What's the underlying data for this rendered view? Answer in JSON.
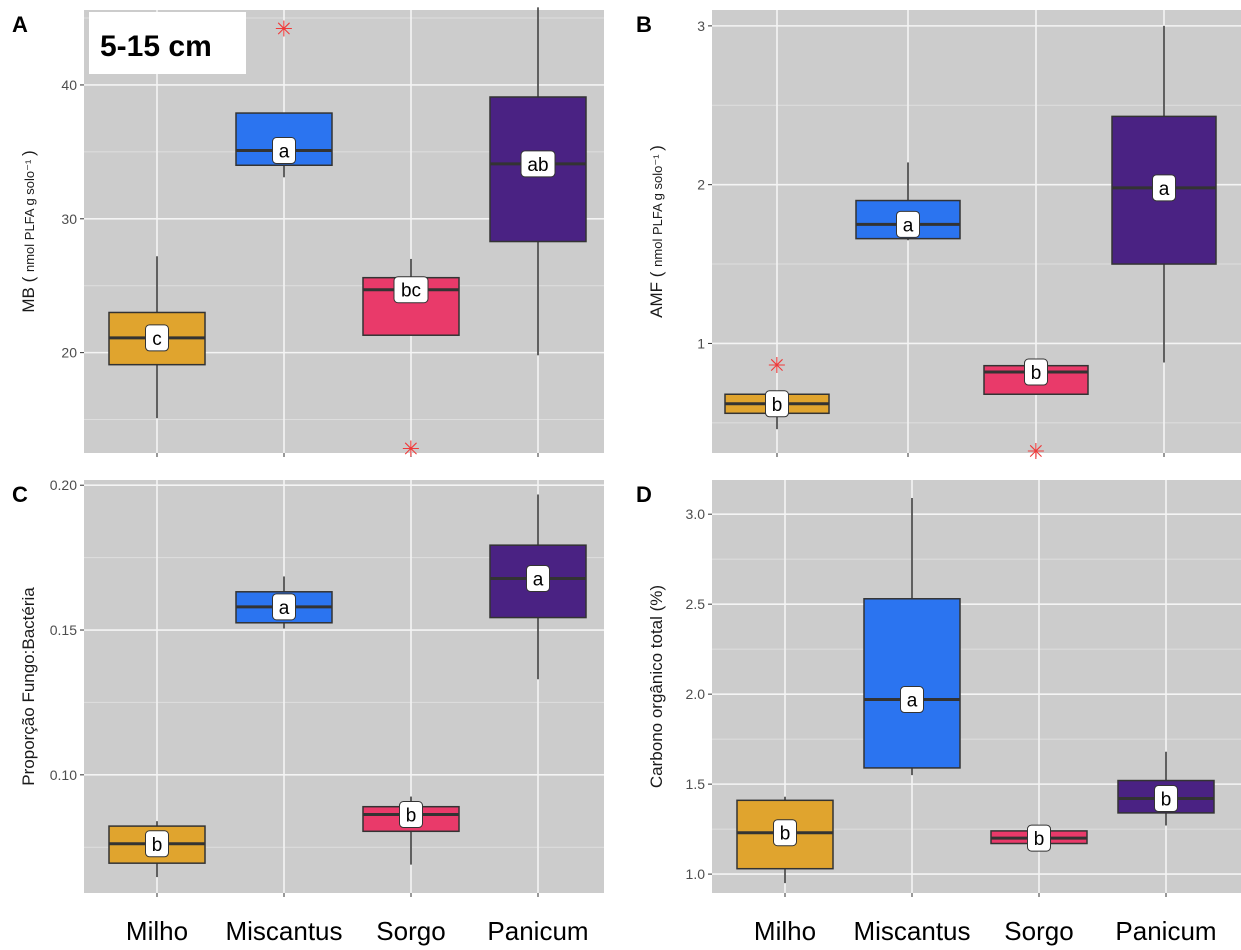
{
  "inset_label": "5-15 cm",
  "categories": [
    "Milho",
    "Miscantus",
    "Sorgo",
    "Panicum"
  ],
  "colors": {
    "Milho": "#e0a42e",
    "Miscantus": "#2b74f0",
    "Sorgo": "#e93a6a",
    "Panicum": "#4a2283",
    "outlier": "#ef3a3a",
    "panel_bg": "#cccccc"
  },
  "chart_data": [
    {
      "panel": "A",
      "type": "box",
      "ylabel_main": "MB (",
      "ylabel_unit": "nmol PLFA g solo⁻¹",
      "ylabel_close": ")",
      "ylim": [
        12.5,
        45.6
      ],
      "yticks": [
        20,
        30,
        40
      ],
      "ytick_labels": [
        "20",
        "30",
        "40"
      ],
      "boxes": [
        {
          "category": "Milho",
          "whisker_low": 15.1,
          "q1": 19.1,
          "median": 21.1,
          "q3": 23.0,
          "whisker_high": 27.2,
          "letter": "c",
          "outliers": []
        },
        {
          "category": "Miscantus",
          "whisker_low": 33.1,
          "q1": 34.0,
          "median": 35.1,
          "q3": 37.9,
          "whisker_high": 37.9,
          "letter": "a",
          "outliers": [
            44.3
          ]
        },
        {
          "category": "Sorgo",
          "whisker_low": 21.3,
          "q1": 21.3,
          "median": 24.7,
          "q3": 25.6,
          "whisker_high": 27.0,
          "letter": "bc",
          "outliers": [
            12.9
          ]
        },
        {
          "category": "Panicum",
          "whisker_low": 19.8,
          "q1": 28.3,
          "median": 34.1,
          "q3": 39.1,
          "whisker_high": 45.8,
          "letter": "ab",
          "outliers": []
        }
      ]
    },
    {
      "panel": "B",
      "type": "box",
      "ylabel_main": "AMF (",
      "ylabel_unit": "nmol PLFA g solo⁻¹",
      "ylabel_close": ")",
      "ylim": [
        0.31,
        3.1
      ],
      "yticks": [
        1,
        2,
        3
      ],
      "ytick_labels": [
        "1",
        "2",
        "3"
      ],
      "boxes": [
        {
          "category": "Milho",
          "whisker_low": 0.46,
          "q1": 0.56,
          "median": 0.62,
          "q3": 0.68,
          "whisker_high": 0.68,
          "letter": "b",
          "outliers": [
            0.87
          ]
        },
        {
          "category": "Miscantus",
          "whisker_low": 1.65,
          "q1": 1.66,
          "median": 1.75,
          "q3": 1.9,
          "whisker_high": 2.14,
          "letter": "a",
          "outliers": []
        },
        {
          "category": "Sorgo",
          "whisker_low": 0.68,
          "q1": 0.68,
          "median": 0.82,
          "q3": 0.86,
          "whisker_high": 0.86,
          "letter": "b",
          "outliers": [
            0.33
          ]
        },
        {
          "category": "Panicum",
          "whisker_low": 0.88,
          "q1": 1.5,
          "median": 1.98,
          "q3": 2.43,
          "whisker_high": 3.0,
          "letter": "a",
          "outliers": []
        }
      ]
    },
    {
      "panel": "C",
      "type": "box",
      "ylabel_main": "Proporção Fungo:Bactéria",
      "ylabel_unit": "",
      "ylabel_close": "",
      "ylim": [
        0.0592,
        0.2018
      ],
      "yticks": [
        0.1,
        0.15,
        0.2
      ],
      "ytick_labels": [
        "0.10",
        "0.15",
        "0.20"
      ],
      "boxes": [
        {
          "category": "Milho",
          "whisker_low": 0.0647,
          "q1": 0.0695,
          "median": 0.0762,
          "q3": 0.0823,
          "whisker_high": 0.084,
          "letter": "b",
          "outliers": []
        },
        {
          "category": "Miscantus",
          "whisker_low": 0.1505,
          "q1": 0.1525,
          "median": 0.158,
          "q3": 0.1632,
          "whisker_high": 0.1685,
          "letter": "a",
          "outliers": []
        },
        {
          "category": "Sorgo",
          "whisker_low": 0.069,
          "q1": 0.0805,
          "median": 0.0863,
          "q3": 0.089,
          "whisker_high": 0.0925,
          "letter": "b",
          "outliers": []
        },
        {
          "category": "Panicum",
          "whisker_low": 0.133,
          "q1": 0.1543,
          "median": 0.1678,
          "q3": 0.1793,
          "whisker_high": 0.1968,
          "letter": "a",
          "outliers": []
        }
      ]
    },
    {
      "panel": "D",
      "type": "box",
      "ylabel_main": "Carbono orgânico total",
      "ylabel_unit": "(%)",
      "ylabel_close": "",
      "ylim": [
        0.895,
        3.19
      ],
      "yticks": [
        1.0,
        1.5,
        2.0,
        2.5,
        3.0
      ],
      "ytick_labels": [
        "1.0",
        "1.5",
        "2.0",
        "2.5",
        "3.0"
      ],
      "boxes": [
        {
          "category": "Milho",
          "whisker_low": 0.95,
          "q1": 1.03,
          "median": 1.23,
          "q3": 1.41,
          "whisker_high": 1.43,
          "letter": "b",
          "outliers": []
        },
        {
          "category": "Miscantus",
          "whisker_low": 1.55,
          "q1": 1.59,
          "median": 1.97,
          "q3": 2.53,
          "whisker_high": 3.09,
          "letter": "a",
          "outliers": []
        },
        {
          "category": "Sorgo",
          "whisker_low": 1.17,
          "q1": 1.17,
          "median": 1.2,
          "q3": 1.24,
          "whisker_high": 1.24,
          "letter": "b",
          "outliers": []
        },
        {
          "category": "Panicum",
          "whisker_low": 1.27,
          "q1": 1.34,
          "median": 1.42,
          "q3": 1.52,
          "whisker_high": 1.68,
          "letter": "b",
          "outliers": []
        }
      ]
    }
  ]
}
